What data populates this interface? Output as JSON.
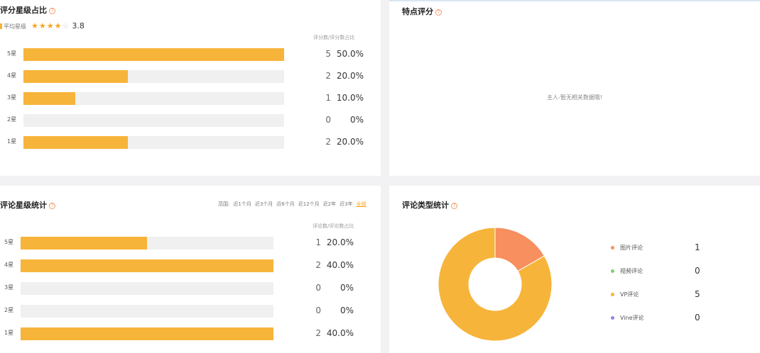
{
  "rating_share": {
    "title": "评分星级占比",
    "avg_label": "平均星级",
    "avg_stars": "★★★★",
    "avg_stars_empty": "☆",
    "avg_value": "3.8",
    "col_header": "评分数/评分数占比",
    "rows": [
      {
        "label": "5星",
        "count": "5",
        "pct": "50.0%",
        "share": 1.0
      },
      {
        "label": "4星",
        "count": "2",
        "pct": "20.0%",
        "share": 0.4
      },
      {
        "label": "3星",
        "count": "1",
        "pct": "10.0%",
        "share": 0.2
      },
      {
        "label": "2星",
        "count": "0",
        "pct": "0%",
        "share": 0
      },
      {
        "label": "1星",
        "count": "2",
        "pct": "20.0%",
        "share": 0.4
      }
    ]
  },
  "features": {
    "title": "特点评分",
    "empty_text": "主人-暂无相关数据哦!"
  },
  "review_stats": {
    "title": "评论星级统计",
    "range_label": "范围:",
    "ranges": [
      "近1个月",
      "近3个月",
      "近6个月",
      "近12个月",
      "近2年",
      "近3年",
      "全部"
    ],
    "active_range": "全部",
    "col_header": "评论数/评论数占比",
    "rows": [
      {
        "label": "5星",
        "count": "1",
        "pct": "20.0%",
        "share": 0.5
      },
      {
        "label": "4星",
        "count": "2",
        "pct": "40.0%",
        "share": 1.0
      },
      {
        "label": "3星",
        "count": "0",
        "pct": "0%",
        "share": 0
      },
      {
        "label": "2星",
        "count": "0",
        "pct": "0%",
        "share": 0
      },
      {
        "label": "1星",
        "count": "2",
        "pct": "40.0%",
        "share": 1.0
      }
    ]
  },
  "review_types": {
    "title": "评论类型统计",
    "items": [
      {
        "label": "图片评论",
        "value": "1",
        "color": "#f78f5f"
      },
      {
        "label": "视频评论",
        "value": "0",
        "color": "#7ccf6b"
      },
      {
        "label": "VP评论",
        "value": "5",
        "color": "#f7b43a"
      },
      {
        "label": "Vine评论",
        "value": "0",
        "color": "#8f85e8"
      }
    ]
  },
  "colors": {
    "bar_fill": "#f7b43a",
    "bar_track": "#f0f0f0",
    "accent": "#f5a623"
  }
}
